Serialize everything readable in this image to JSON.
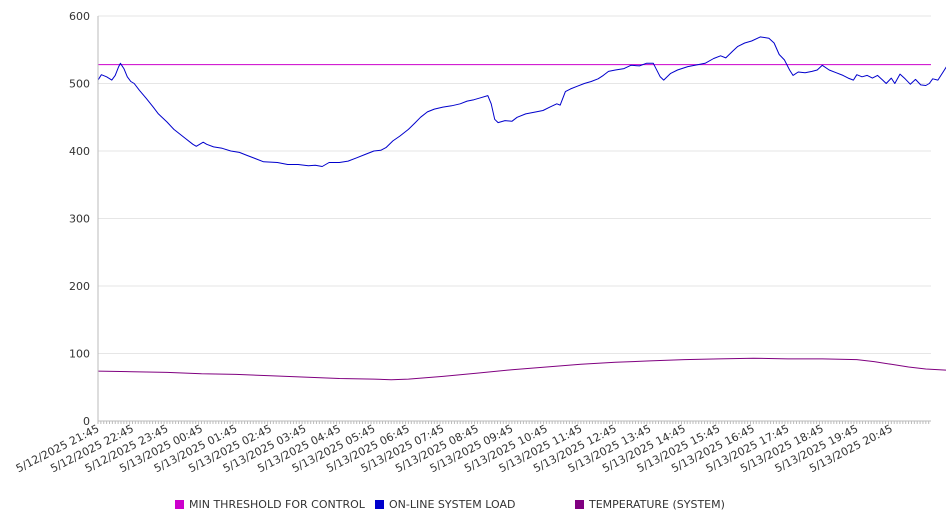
{
  "chart_data": {
    "type": "line",
    "title": "",
    "xlabel": "",
    "ylabel": "",
    "ylim": [
      0,
      600
    ],
    "yticks": [
      0,
      100,
      200,
      300,
      400,
      500,
      600
    ],
    "x_tick_labels": [
      "5/12/2025 21:45",
      "5/12/2025 22:45",
      "5/12/2025 23:45",
      "5/13/2025 00:45",
      "5/13/2025 01:45",
      "5/13/2025 02:45",
      "5/13/2025 03:45",
      "5/13/2025 04:45",
      "5/13/2025 05:45",
      "5/13/2025 06:45",
      "5/13/2025 07:45",
      "5/13/2025 08:45",
      "5/13/2025 09:45",
      "5/13/2025 10:45",
      "5/13/2025 11:45",
      "5/13/2025 12:45",
      "5/13/2025 13:45",
      "5/13/2025 14:45",
      "5/13/2025 15:45",
      "5/13/2025 16:45",
      "5/13/2025 17:45",
      "5/13/2025 18:45",
      "5/13/2025 19:45",
      "5/13/2025 20:45"
    ],
    "x_range_hours": [
      0,
      24.15
    ],
    "grid": "horizontal",
    "legend_position": "bottom",
    "series": [
      {
        "name": "MIN THRESHOLD FOR CONTROL",
        "color": "#cc00cc",
        "points": [
          [
            0,
            528
          ],
          [
            24.15,
            528
          ]
        ]
      },
      {
        "name": "ON-LINE SYSTEM LOAD",
        "color": "#0000cc",
        "points": [
          [
            0,
            505
          ],
          [
            0.1,
            513
          ],
          [
            0.25,
            510
          ],
          [
            0.4,
            505
          ],
          [
            0.5,
            512
          ],
          [
            0.6,
            525
          ],
          [
            0.65,
            530
          ],
          [
            0.75,
            522
          ],
          [
            0.85,
            510
          ],
          [
            0.95,
            503
          ],
          [
            1.05,
            500
          ],
          [
            1.2,
            490
          ],
          [
            1.4,
            478
          ],
          [
            1.6,
            465
          ],
          [
            1.75,
            455
          ],
          [
            2.0,
            443
          ],
          [
            2.2,
            432
          ],
          [
            2.5,
            420
          ],
          [
            2.75,
            410
          ],
          [
            2.85,
            407
          ],
          [
            3.05,
            413
          ],
          [
            3.15,
            410
          ],
          [
            3.35,
            406
          ],
          [
            3.6,
            404
          ],
          [
            3.85,
            400
          ],
          [
            4.1,
            398
          ],
          [
            4.3,
            394
          ],
          [
            4.6,
            388
          ],
          [
            4.8,
            384
          ],
          [
            5.2,
            383
          ],
          [
            5.5,
            380
          ],
          [
            5.8,
            380
          ],
          [
            6.1,
            378
          ],
          [
            6.3,
            379
          ],
          [
            6.5,
            377
          ],
          [
            6.7,
            383
          ],
          [
            7.0,
            383
          ],
          [
            7.25,
            385
          ],
          [
            7.5,
            390
          ],
          [
            7.75,
            395
          ],
          [
            8.0,
            400
          ],
          [
            8.2,
            401
          ],
          [
            8.35,
            405
          ],
          [
            8.55,
            415
          ],
          [
            8.75,
            422
          ],
          [
            9.0,
            432
          ],
          [
            9.2,
            442
          ],
          [
            9.35,
            450
          ],
          [
            9.55,
            458
          ],
          [
            9.75,
            462
          ],
          [
            10.0,
            465
          ],
          [
            10.25,
            467
          ],
          [
            10.5,
            470
          ],
          [
            10.7,
            474
          ],
          [
            10.9,
            476
          ],
          [
            11.1,
            479
          ],
          [
            11.3,
            482
          ],
          [
            11.4,
            470
          ],
          [
            11.5,
            447
          ],
          [
            11.6,
            442
          ],
          [
            11.8,
            445
          ],
          [
            12.0,
            444
          ],
          [
            12.15,
            450
          ],
          [
            12.4,
            455
          ],
          [
            12.7,
            458
          ],
          [
            12.9,
            460
          ],
          [
            13.1,
            465
          ],
          [
            13.3,
            470
          ],
          [
            13.4,
            468
          ],
          [
            13.55,
            488
          ],
          [
            13.7,
            492
          ],
          [
            13.9,
            496
          ],
          [
            14.1,
            500
          ],
          [
            14.3,
            503
          ],
          [
            14.5,
            507
          ],
          [
            14.65,
            512
          ],
          [
            14.8,
            518
          ],
          [
            15.0,
            520
          ],
          [
            15.25,
            522
          ],
          [
            15.45,
            527
          ],
          [
            15.7,
            526
          ],
          [
            15.9,
            530
          ],
          [
            16.1,
            530
          ],
          [
            16.3,
            510
          ],
          [
            16.4,
            505
          ],
          [
            16.6,
            515
          ],
          [
            16.8,
            520
          ],
          [
            17.1,
            525
          ],
          [
            17.4,
            528
          ],
          [
            17.6,
            530
          ],
          [
            17.85,
            537
          ],
          [
            18.05,
            541
          ],
          [
            18.2,
            538
          ],
          [
            18.4,
            548
          ],
          [
            18.55,
            555
          ],
          [
            18.75,
            560
          ],
          [
            18.95,
            563
          ],
          [
            19.2,
            569
          ],
          [
            19.45,
            567
          ],
          [
            19.6,
            560
          ],
          [
            19.75,
            543
          ],
          [
            19.9,
            535
          ],
          [
            20.05,
            520
          ],
          [
            20.15,
            512
          ],
          [
            20.3,
            517
          ],
          [
            20.5,
            516
          ],
          [
            20.7,
            518
          ],
          [
            20.85,
            520
          ],
          [
            21.0,
            527
          ],
          [
            21.2,
            520
          ],
          [
            21.4,
            516
          ],
          [
            21.6,
            512
          ],
          [
            21.75,
            508
          ],
          [
            21.9,
            505
          ],
          [
            22.0,
            513
          ],
          [
            22.15,
            510
          ],
          [
            22.3,
            512
          ],
          [
            22.45,
            508
          ],
          [
            22.6,
            512
          ],
          [
            22.75,
            505
          ],
          [
            22.85,
            500
          ],
          [
            23.0,
            508
          ],
          [
            23.1,
            500
          ],
          [
            23.25,
            514
          ],
          [
            23.4,
            507
          ],
          [
            23.55,
            499
          ],
          [
            23.7,
            506
          ],
          [
            23.85,
            498
          ],
          [
            24.0,
            497
          ],
          [
            24.1,
            500
          ],
          [
            24.2,
            507
          ],
          [
            24.35,
            505
          ],
          [
            24.5,
            517
          ],
          [
            24.6,
            525
          ],
          [
            24.7,
            528
          ]
        ]
      },
      {
        "name": "TEMPERATURE (SYSTEM)",
        "color": "#800080",
        "points": [
          [
            0,
            74
          ],
          [
            1.0,
            73
          ],
          [
            2.0,
            72
          ],
          [
            3.0,
            70
          ],
          [
            4.0,
            69
          ],
          [
            5.0,
            67
          ],
          [
            6.0,
            65
          ],
          [
            7.0,
            63
          ],
          [
            8.0,
            62
          ],
          [
            8.5,
            61
          ],
          [
            9.0,
            62
          ],
          [
            10.0,
            66
          ],
          [
            11.0,
            71
          ],
          [
            12.0,
            76
          ],
          [
            13.0,
            80
          ],
          [
            14.0,
            84
          ],
          [
            15.0,
            87
          ],
          [
            16.0,
            89
          ],
          [
            17.0,
            91
          ],
          [
            18.0,
            92
          ],
          [
            19.0,
            93
          ],
          [
            20.0,
            92
          ],
          [
            21.0,
            92
          ],
          [
            22.0,
            91
          ],
          [
            22.5,
            88
          ],
          [
            23.0,
            84
          ],
          [
            23.5,
            80
          ],
          [
            24.0,
            77
          ],
          [
            24.7,
            75
          ]
        ]
      }
    ]
  }
}
